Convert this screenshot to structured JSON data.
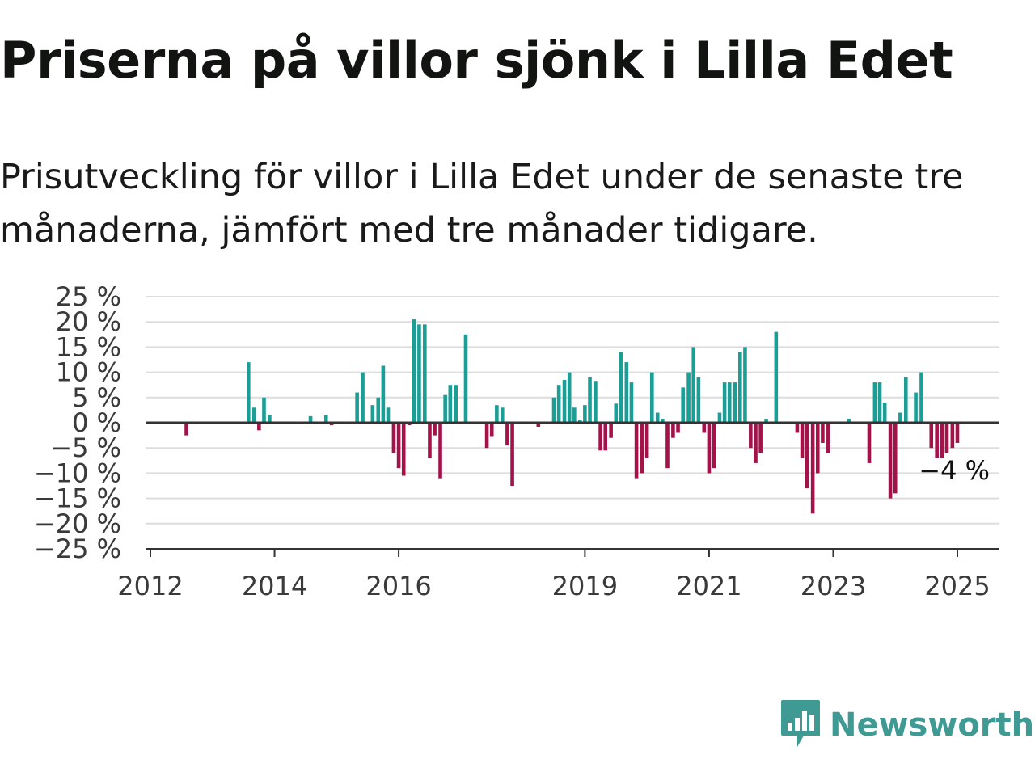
{
  "title": "Priserna på villor sjönk i Lilla Edet",
  "subtitle": "Prisutveckling för villor i Lilla Edet under de senaste tre månaderna, jämfört med tre månader tidigare.",
  "brand": {
    "name": "Newsworthy",
    "icon": "newsworthy-logo-icon"
  },
  "colors": {
    "positive": "#1b9e96",
    "negative": "#a3134a",
    "grid": "#dddddd",
    "zero_line": "#333333"
  },
  "chart_data": {
    "type": "bar",
    "title": "",
    "xlabel": "",
    "ylabel": "",
    "ylim": [
      -25,
      25
    ],
    "y_ticks": [
      25,
      20,
      15,
      10,
      5,
      0,
      -5,
      -10,
      -15,
      -20,
      -25
    ],
    "y_tick_labels": [
      "25 %",
      "20 %",
      "15 %",
      "10 %",
      "5 %",
      "0 %",
      "−5 %",
      "−10 %",
      "−15 %",
      "−20 %",
      "−25 %"
    ],
    "x_ticks": [
      2012,
      2014,
      2016,
      2019,
      2021,
      2023,
      2025
    ],
    "x_tick_labels": [
      "2012",
      "2014",
      "2016",
      "2019",
      "2021",
      "2023",
      "2025"
    ],
    "xlim": [
      2012,
      2025.65
    ],
    "grid": true,
    "annotation": {
      "text": "−4 %",
      "x": 2024.96,
      "y": -4
    },
    "x": [
      2012.58,
      2013.58,
      2013.67,
      2013.75,
      2013.83,
      2013.92,
      2014.58,
      2014.83,
      2014.92,
      2015.33,
      2015.42,
      2015.58,
      2015.67,
      2015.75,
      2015.83,
      2015.92,
      2016.0,
      2016.08,
      2016.17,
      2016.25,
      2016.33,
      2016.42,
      2016.5,
      2016.58,
      2016.67,
      2016.75,
      2016.83,
      2016.92,
      2017.08,
      2017.42,
      2017.5,
      2017.58,
      2017.67,
      2017.75,
      2017.83,
      2018.25,
      2018.5,
      2018.58,
      2018.67,
      2018.75,
      2018.83,
      2018.92,
      2019.0,
      2019.08,
      2019.17,
      2019.25,
      2019.33,
      2019.42,
      2019.5,
      2019.58,
      2019.67,
      2019.75,
      2019.83,
      2019.92,
      2020.0,
      2020.08,
      2020.17,
      2020.25,
      2020.33,
      2020.42,
      2020.5,
      2020.58,
      2020.67,
      2020.75,
      2020.83,
      2020.92,
      2021.0,
      2021.08,
      2021.17,
      2021.25,
      2021.33,
      2021.42,
      2021.5,
      2021.58,
      2021.67,
      2021.75,
      2021.83,
      2021.92,
      2022.08,
      2022.42,
      2022.5,
      2022.58,
      2022.67,
      2022.75,
      2022.83,
      2022.92,
      2023.25,
      2023.58,
      2023.67,
      2023.75,
      2023.83,
      2023.92,
      2024.0,
      2024.08,
      2024.17,
      2024.33,
      2024.42,
      2024.58,
      2024.67,
      2024.75,
      2024.83,
      2024.92,
      2025.0
    ],
    "series": [
      {
        "values": [
          -2.5,
          12,
          3,
          -1.5,
          5,
          1.5,
          1.3,
          1.5,
          -0.5,
          6,
          10,
          3.5,
          5,
          11.3,
          3,
          -6,
          -9,
          -10.5,
          -0.5,
          20.5,
          19.5,
          19.5,
          -7,
          -2.5,
          -11,
          5.5,
          7.5,
          7.5,
          17.5,
          -5,
          -2.8,
          3.5,
          3,
          -4.5,
          -12.5,
          -0.8,
          5,
          7.5,
          8.5,
          10,
          3,
          0.5,
          3.5,
          9,
          8.3,
          -5.5,
          -5.5,
          -3,
          3.8,
          14,
          12,
          8,
          -11,
          -10,
          -7,
          10,
          2,
          0.8,
          -9,
          -3,
          -2,
          7,
          10,
          15,
          9,
          -2,
          -10,
          -9,
          2,
          8,
          8,
          8,
          14,
          15,
          -5,
          -8,
          -6,
          0.8,
          18,
          -2,
          -7,
          -13,
          -18,
          -10,
          -4,
          -6,
          0.8,
          -8,
          8,
          8,
          4,
          -15,
          -14,
          2,
          9,
          6,
          10,
          -5,
          -7,
          -7,
          -6,
          -5,
          -4
        ]
      }
    ]
  }
}
